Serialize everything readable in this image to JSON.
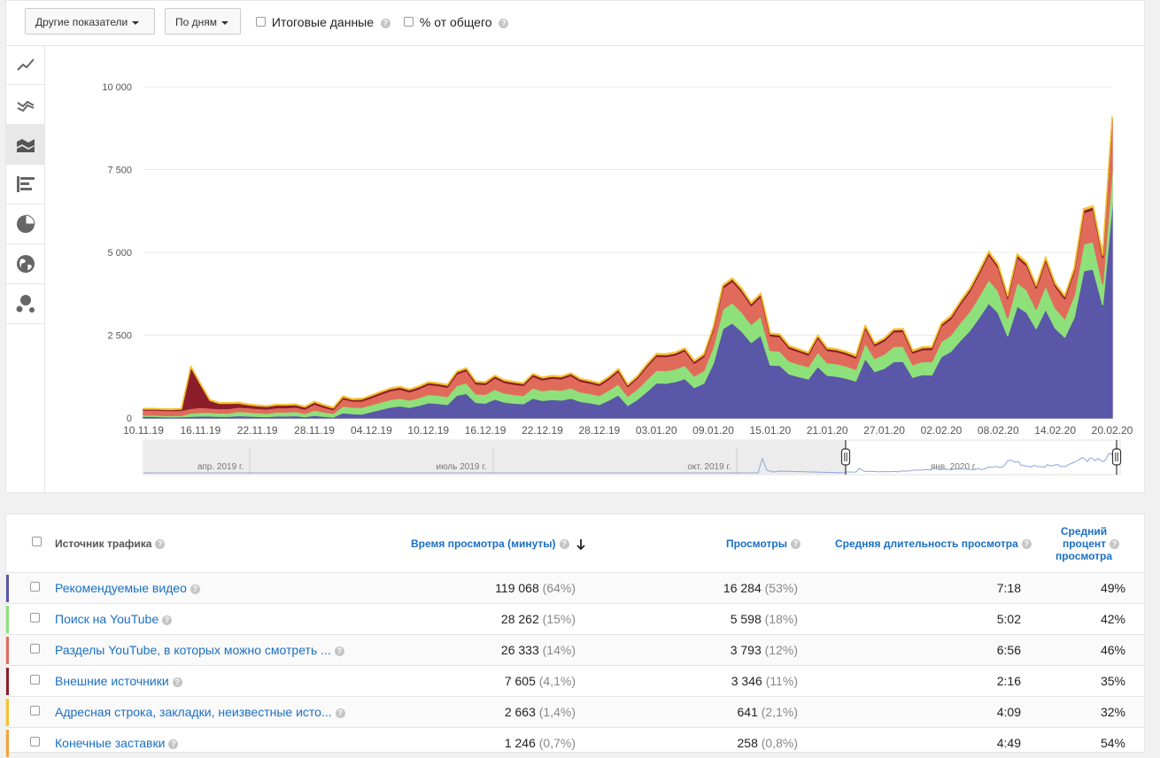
{
  "toolbar": {
    "metrics_dropdown": "Другие показатели",
    "period_dropdown": "По дням",
    "totals_checkbox": "Итоговые данные",
    "percent_checkbox": "% от общего"
  },
  "sidebar": {
    "items": [
      {
        "icon": "line-chart-icon"
      },
      {
        "icon": "multi-line-chart-icon"
      },
      {
        "icon": "stacked-area-chart-icon",
        "active": true
      },
      {
        "icon": "bar-chart-icon"
      },
      {
        "icon": "pie-chart-icon"
      },
      {
        "icon": "globe-map-icon"
      },
      {
        "icon": "bubble-chart-icon"
      }
    ]
  },
  "timeline": {
    "labels": [
      "апр. 2019 г.",
      "июль 2019 г.",
      "окт. 2019 г.",
      "янв. 2020 г."
    ]
  },
  "chart_data": {
    "type": "area",
    "stacked": true,
    "x": [
      "10.11.19",
      "11.11.19",
      "12.11.19",
      "13.11.19",
      "14.11.19",
      "15.11.19",
      "16.11.19",
      "17.11.19",
      "18.11.19",
      "19.11.19",
      "20.11.19",
      "21.11.19",
      "22.11.19",
      "23.11.19",
      "24.11.19",
      "25.11.19",
      "26.11.19",
      "27.11.19",
      "28.11.19",
      "29.11.19",
      "30.11.19",
      "01.12.19",
      "02.12.19",
      "03.12.19",
      "04.12.19",
      "05.12.19",
      "06.12.19",
      "07.12.19",
      "08.12.19",
      "09.12.19",
      "10.12.19",
      "11.12.19",
      "12.12.19",
      "13.12.19",
      "14.12.19",
      "15.12.19",
      "16.12.19",
      "17.12.19",
      "18.12.19",
      "19.12.19",
      "20.12.19",
      "21.12.19",
      "22.12.19",
      "23.12.19",
      "24.12.19",
      "25.12.19",
      "26.12.19",
      "27.12.19",
      "28.12.19",
      "29.12.19",
      "30.12.19",
      "31.12.19",
      "01.01.20",
      "02.01.20",
      "03.01.20",
      "04.01.20",
      "05.01.20",
      "06.01.20",
      "07.01.20",
      "08.01.20",
      "09.01.20",
      "10.01.20",
      "11.01.20",
      "12.01.20",
      "13.01.20",
      "14.01.20",
      "15.01.20",
      "16.01.20",
      "17.01.20",
      "18.01.20",
      "19.01.20",
      "20.01.20",
      "21.01.20",
      "22.01.20",
      "23.01.20",
      "24.01.20",
      "25.01.20",
      "26.01.20",
      "27.01.20",
      "28.01.20",
      "29.01.20",
      "30.01.20",
      "31.01.20",
      "01.02.20",
      "02.02.20",
      "03.02.20",
      "04.02.20",
      "05.02.20",
      "06.02.20",
      "07.02.20",
      "08.02.20",
      "09.02.20",
      "10.02.20",
      "11.02.20",
      "12.02.20",
      "13.02.20",
      "14.02.20",
      "15.02.20",
      "16.02.20",
      "17.02.20",
      "18.02.20",
      "19.02.20",
      "20.02.20"
    ],
    "tick_labels": [
      "10.11.19",
      "16.11.19",
      "22.11.19",
      "28.11.19",
      "04.12.19",
      "10.12.19",
      "16.12.19",
      "22.12.19",
      "28.12.19",
      "03.01.20",
      "09.01.20",
      "15.01.20",
      "21.01.20",
      "27.01.20",
      "02.02.20",
      "08.02.20",
      "14.02.20",
      "20.02.20"
    ],
    "y_ticks": [
      "0",
      "2 500",
      "5 000",
      "7 500",
      "10 000"
    ],
    "ylim": [
      0,
      10000
    ],
    "grid": true,
    "series": [
      {
        "name": "Рекомендуемые видео",
        "color": "#5a56a8",
        "values": [
          50,
          50,
          40,
          35,
          40,
          50,
          60,
          60,
          50,
          50,
          70,
          60,
          50,
          40,
          60,
          60,
          70,
          40,
          80,
          50,
          30,
          160,
          130,
          120,
          190,
          260,
          330,
          370,
          320,
          380,
          460,
          440,
          410,
          690,
          740,
          470,
          450,
          570,
          480,
          450,
          430,
          600,
          530,
          560,
          540,
          600,
          500,
          460,
          410,
          540,
          700,
          380,
          560,
          800,
          1060,
          1050,
          1100,
          1190,
          920,
          1050,
          1650,
          2700,
          2870,
          2620,
          2280,
          2500,
          1600,
          1590,
          1330,
          1250,
          1180,
          1560,
          1290,
          1260,
          1200,
          1120,
          1800,
          1400,
          1500,
          1700,
          1710,
          1230,
          1310,
          1300,
          1850,
          2010,
          2340,
          2640,
          3040,
          3470,
          3180,
          2480,
          3380,
          3190,
          2700,
          3290,
          2720,
          2440,
          3040,
          4440,
          4500,
          3420,
          6450
        ]
      },
      {
        "name": "Поиск на YouTube",
        "color": "#8ee07a",
        "values": [
          40,
          40,
          40,
          40,
          40,
          100,
          110,
          110,
          100,
          100,
          130,
          120,
          110,
          100,
          120,
          120,
          130,
          100,
          160,
          130,
          110,
          200,
          200,
          200,
          210,
          220,
          230,
          230,
          220,
          230,
          250,
          250,
          240,
          300,
          320,
          260,
          260,
          300,
          270,
          260,
          250,
          310,
          290,
          300,
          300,
          310,
          290,
          280,
          270,
          300,
          330,
          280,
          310,
          360,
          380,
          380,
          380,
          400,
          350,
          380,
          500,
          590,
          610,
          580,
          550,
          570,
          440,
          430,
          390,
          380,
          370,
          430,
          380,
          380,
          370,
          350,
          470,
          400,
          430,
          460,
          460,
          380,
          390,
          400,
          460,
          490,
          540,
          580,
          640,
          710,
          660,
          540,
          710,
          680,
          590,
          710,
          610,
          560,
          670,
          810,
          830,
          640,
          1020
        ]
      },
      {
        "name": "Разделы YouTube, в которых можно смотреть ...",
        "color": "#e06b5b",
        "values": [
          150,
          150,
          150,
          150,
          150,
          140,
          150,
          130,
          130,
          140,
          130,
          130,
          130,
          130,
          130,
          130,
          130,
          130,
          180,
          140,
          110,
          220,
          180,
          190,
          210,
          240,
          260,
          270,
          250,
          270,
          300,
          290,
          280,
          340,
          370,
          300,
          300,
          340,
          320,
          310,
          300,
          350,
          330,
          340,
          340,
          370,
          320,
          310,
          300,
          330,
          380,
          290,
          330,
          390,
          420,
          420,
          420,
          440,
          380,
          420,
          520,
          630,
          650,
          610,
          560,
          600,
          440,
          430,
          380,
          370,
          350,
          430,
          370,
          360,
          350,
          340,
          450,
          380,
          400,
          440,
          440,
          350,
          360,
          370,
          460,
          490,
          550,
          600,
          680,
          750,
          700,
          590,
          760,
          720,
          630,
          760,
          650,
          600,
          720,
          950,
          960,
          780,
          1490
        ]
      },
      {
        "name": "Внешние источники",
        "color": "#8b1e2a",
        "values": [
          30,
          30,
          30,
          30,
          40,
          1250,
          700,
          230,
          160,
          150,
          120,
          90,
          80,
          80,
          80,
          80,
          70,
          60,
          60,
          60,
          50,
          60,
          50,
          60,
          60,
          60,
          60,
          60,
          60,
          60,
          60,
          60,
          60,
          60,
          60,
          60,
          60,
          60,
          60,
          60,
          60,
          60,
          60,
          60,
          60,
          60,
          60,
          60,
          60,
          60,
          60,
          50,
          50,
          60,
          60,
          60,
          60,
          60,
          60,
          60,
          60,
          70,
          70,
          70,
          70,
          70,
          60,
          60,
          60,
          60,
          60,
          60,
          60,
          60,
          60,
          60,
          60,
          60,
          60,
          60,
          60,
          60,
          60,
          60,
          60,
          70,
          70,
          70,
          70,
          70,
          70,
          70,
          70,
          70,
          70,
          70,
          70,
          70,
          70,
          80,
          80,
          80,
          80
        ]
      },
      {
        "name": "Адресная строка, закладки, неизвестные исто...",
        "color": "#f5c230",
        "values": [
          15,
          15,
          15,
          15,
          15,
          20,
          20,
          20,
          20,
          20,
          20,
          20,
          20,
          20,
          20,
          20,
          20,
          20,
          20,
          20,
          20,
          20,
          20,
          20,
          20,
          20,
          20,
          20,
          20,
          20,
          20,
          20,
          20,
          20,
          20,
          20,
          20,
          20,
          20,
          20,
          20,
          20,
          20,
          20,
          20,
          20,
          20,
          20,
          20,
          20,
          20,
          20,
          20,
          20,
          25,
          25,
          25,
          25,
          25,
          25,
          30,
          30,
          30,
          30,
          30,
          30,
          25,
          25,
          25,
          25,
          25,
          25,
          25,
          25,
          25,
          25,
          25,
          25,
          25,
          25,
          25,
          25,
          25,
          25,
          30,
          30,
          30,
          30,
          30,
          35,
          35,
          30,
          35,
          35,
          30,
          35,
          30,
          30,
          35,
          40,
          40,
          35,
          50
        ]
      }
    ]
  },
  "table": {
    "headers": {
      "source": "Источник трафика",
      "watch_time": "Время просмотра (минуты)",
      "views": "Просмотры",
      "avg_duration": "Средняя длительность просмотра",
      "avg_percent_1": "Средний",
      "avg_percent_2": "процент",
      "avg_percent_3": "просмотра"
    },
    "rows": [
      {
        "name": "Рекомендуемые видео",
        "color": "#5a56a8",
        "watch": "119 068",
        "watch_pct": "(64%)",
        "views": "16 284",
        "views_pct": "(53%)",
        "avg": "7:18",
        "pct": "49%"
      },
      {
        "name": "Поиск на YouTube",
        "color": "#8ee07a",
        "watch": "28 262",
        "watch_pct": "(15%)",
        "views": "5 598",
        "views_pct": "(18%)",
        "avg": "5:02",
        "pct": "42%"
      },
      {
        "name": "Разделы YouTube, в которых можно смотреть ...",
        "color": "#e06b5b",
        "watch": "26 333",
        "watch_pct": "(14%)",
        "views": "3 793",
        "views_pct": "(12%)",
        "avg": "6:56",
        "pct": "46%"
      },
      {
        "name": "Внешние источники",
        "color": "#8b1e2a",
        "watch": "7 605",
        "watch_pct": "(4,1%)",
        "views": "3 346",
        "views_pct": "(11%)",
        "avg": "2:16",
        "pct": "35%"
      },
      {
        "name": "Адресная строка, закладки, неизвестные исто...",
        "color": "#f5c230",
        "watch": "2 663",
        "watch_pct": "(1,4%)",
        "views": "641",
        "views_pct": "(2,1%)",
        "avg": "4:09",
        "pct": "32%"
      },
      {
        "name": "Конечные заставки",
        "color": "#f2a33a",
        "watch": "1 246",
        "watch_pct": "(0,7%)",
        "views": "258",
        "views_pct": "(0,8%)",
        "avg": "4:49",
        "pct": "54%"
      }
    ]
  }
}
